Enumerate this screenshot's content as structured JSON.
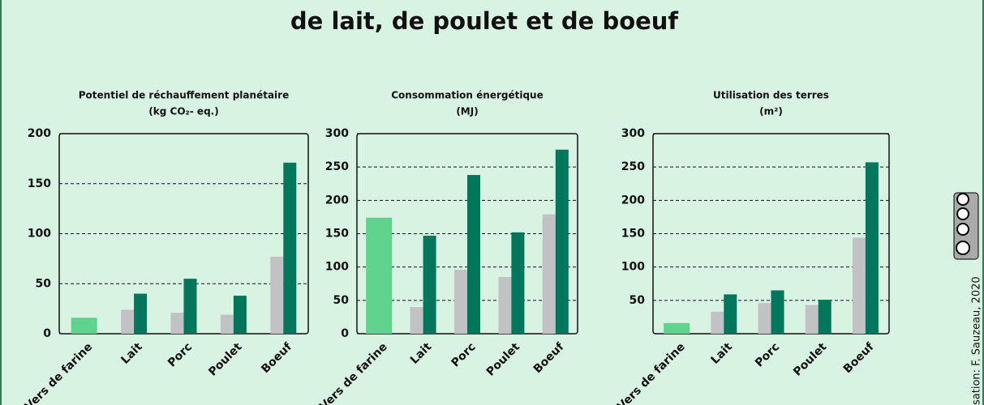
{
  "header": {
    "title": "de lait, de poulet et de boeuf",
    "credit": "sation: F. Sauzeau, 2020"
  },
  "chart_data": [
    {
      "type": "bar",
      "title": "Potentiel de réchauffement planétaire",
      "subtitle": "(kg CO₂- eq.)",
      "categories": [
        "Vers de farine",
        "Lait",
        "Porc",
        "Poulet",
        "Boeuf"
      ],
      "series": [
        {
          "color": "#5fd38d",
          "values": [
            16,
            null,
            null,
            null,
            null
          ]
        },
        {
          "color": "#c2c2c4",
          "values": [
            null,
            24,
            21,
            19,
            77
          ]
        },
        {
          "color": "#00765a",
          "values": [
            null,
            40,
            55,
            38,
            171
          ]
        }
      ],
      "ylim": [
        0,
        200
      ],
      "yticks": [
        0,
        50,
        100,
        150,
        200
      ],
      "grid": true
    },
    {
      "type": "bar",
      "title": "Consommation énergétique",
      "subtitle": "(MJ)",
      "categories": [
        "Vers de farine",
        "Lait",
        "Porc",
        "Poulet",
        "Boeuf"
      ],
      "series": [
        {
          "color": "#5fd38d",
          "values": [
            174,
            null,
            null,
            null,
            null
          ]
        },
        {
          "color": "#c2c2c4",
          "values": [
            null,
            40,
            96,
            85,
            179
          ]
        },
        {
          "color": "#00765a",
          "values": [
            null,
            147,
            238,
            152,
            276
          ]
        }
      ],
      "ylim": [
        0,
        300
      ],
      "yticks": [
        0,
        50,
        100,
        150,
        200,
        250,
        300
      ],
      "grid": true
    },
    {
      "type": "bar",
      "title": "Utilisation des terres",
      "subtitle": "(m²)",
      "categories": [
        "Vers de farine",
        "Lait",
        "Porc",
        "Poulet",
        "Boeuf"
      ],
      "series": [
        {
          "color": "#5fd38d",
          "values": [
            16,
            null,
            null,
            null,
            null
          ]
        },
        {
          "color": "#c2c2c4",
          "values": [
            null,
            33,
            46,
            43,
            144
          ]
        },
        {
          "color": "#00765a",
          "values": [
            null,
            59,
            65,
            51,
            257
          ]
        }
      ],
      "ylim": [
        0,
        300
      ],
      "yticks": [
        50,
        100,
        150,
        200,
        250,
        300
      ],
      "grid": true
    }
  ]
}
